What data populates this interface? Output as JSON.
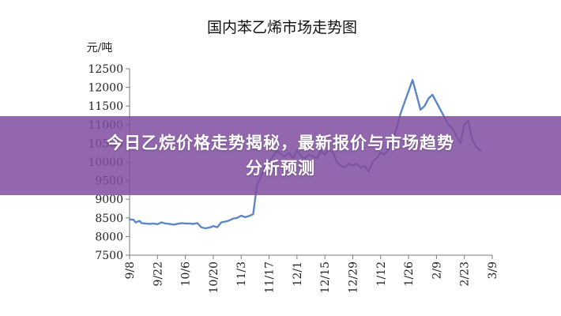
{
  "banner": {
    "line1": "今日乙烷价格走势揭秘，最新报价与市场趋势",
    "line2": "分析预测",
    "background": "#804ea0"
  },
  "chart_data": {
    "type": "line",
    "title": "国内苯乙烯市场走势图",
    "ylabel": "元/吨",
    "xlabel": "",
    "ylim": [
      7500,
      12500
    ],
    "yticks": [
      7500,
      8000,
      8500,
      9000,
      9500,
      10000,
      10500,
      11000,
      11500,
      12000,
      12500
    ],
    "xticks": [
      "9/8",
      "9/22",
      "10/6",
      "10/20",
      "11/3",
      "11/17",
      "12/1",
      "12/15",
      "12/29",
      "1/12",
      "1/26",
      "2/9",
      "2/23",
      "3/9"
    ],
    "xlim": [
      0,
      182
    ],
    "grid": false,
    "line_color": "#5b87c7",
    "series": [
      {
        "x": [
          0,
          2,
          3,
          5,
          6,
          8,
          10,
          12,
          14,
          16,
          18,
          20,
          22,
          24,
          26,
          28,
          30,
          32,
          34,
          36,
          38,
          40,
          42,
          44,
          46,
          48,
          50,
          52,
          54,
          56,
          58,
          60,
          62,
          64,
          66,
          68,
          70,
          72,
          74,
          76,
          78,
          80,
          82,
          84,
          86,
          88,
          90,
          92,
          94,
          96,
          98,
          100,
          102,
          104,
          106,
          108,
          110,
          112,
          114,
          116,
          118,
          120,
          122,
          124,
          126,
          128,
          130,
          132,
          134,
          136,
          138,
          140,
          142,
          144,
          146,
          148,
          150,
          152,
          154,
          156,
          158,
          160,
          162,
          164,
          166,
          168,
          170,
          172,
          174,
          176
        ],
        "values": [
          8460,
          8450,
          8380,
          8420,
          8360,
          8350,
          8340,
          8350,
          8330,
          8380,
          8350,
          8340,
          8320,
          8340,
          8360,
          8350,
          8350,
          8340,
          8360,
          8250,
          8220,
          8240,
          8280,
          8250,
          8380,
          8400,
          8430,
          8480,
          8500,
          8560,
          8520,
          8550,
          8600,
          9400,
          9600,
          9900,
          10000,
          10150,
          10300,
          10200,
          10150,
          10250,
          10100,
          10300,
          10150,
          10100,
          10200,
          10150,
          10100,
          10300,
          10200,
          10350,
          10250,
          10000,
          9900,
          9850,
          9950,
          9900,
          9950,
          9850,
          9900,
          9750,
          10000,
          10100,
          10250,
          10200,
          10350,
          10600,
          10900,
          11300,
          11600,
          11900,
          12200,
          11800,
          11400,
          11500,
          11700,
          11800,
          11600,
          11400,
          11200,
          11000,
          10900,
          10700,
          10500,
          11000,
          11100,
          10600,
          10400,
          10300
        ]
      }
    ]
  }
}
